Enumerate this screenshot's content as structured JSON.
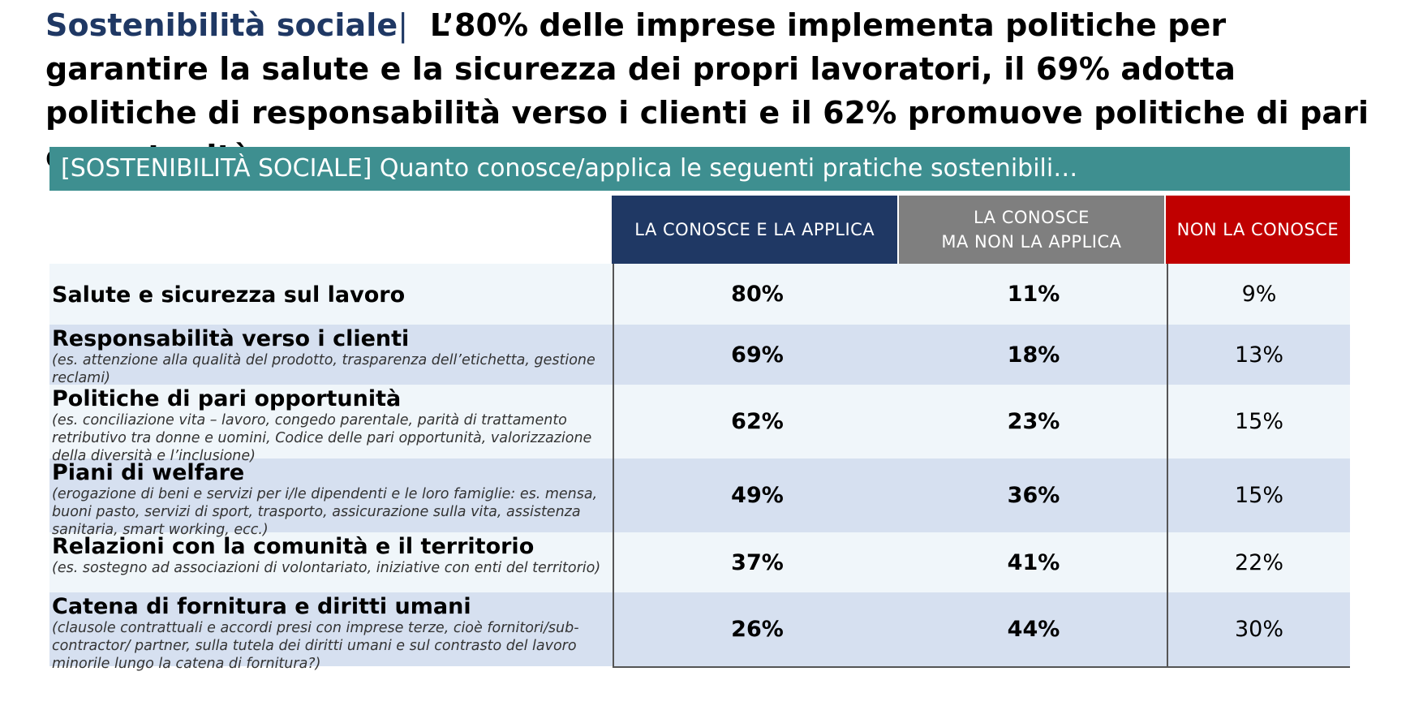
{
  "headline": {
    "brand": "Sostenibilità sociale",
    "separator": "|",
    "text": "L’80% delle imprese implementa politiche per garantire la salute e la sicurezza dei propri lavoratori, il 69% adotta politiche di responsabilità verso i clienti e il 62% promuove politiche di pari opportunità."
  },
  "banner": "[SOSTENIBILITÀ SOCIALE] Quanto conosce/applica le seguenti pratiche sostenibili…",
  "columns": {
    "applies_line1": "LA CONOSCE E LA APPLICA",
    "knows_line1": "LA CONOSCE",
    "knows_line2": "MA NON LA APPLICA",
    "unknown_line1": "NON LA CONOSCE"
  },
  "colors": {
    "banner": "#3e8f90",
    "applies_header": "#1f3864",
    "knows_header": "#7f7f7f",
    "unknown_header": "#c00000",
    "row_light": "#f0f6fa",
    "row_dark": "#d6e0f0"
  },
  "rows": [
    {
      "title": "Salute e sicurezza sul lavoro",
      "desc": "",
      "applies": "80%",
      "knows": "11%",
      "unknown": "9%"
    },
    {
      "title": "Responsabilità verso i clienti",
      "desc": "(es. attenzione alla qualità del prodotto, trasparenza dell’etichetta, gestione reclami)",
      "applies": "69%",
      "knows": "18%",
      "unknown": "13%"
    },
    {
      "title": "Politiche di pari opportunità",
      "desc": "(es. conciliazione vita – lavoro, congedo parentale, parità di trattamento retributivo tra donne e uomini, Codice delle pari opportunità, valorizzazione della diversità e l’inclusione)",
      "applies": "62%",
      "knows": "23%",
      "unknown": "15%"
    },
    {
      "title": "Piani di welfare",
      "desc": "(erogazione di beni e servizi per i/le dipendenti e le loro famiglie: es. mensa, buoni pasto, servizi di sport, trasporto, assicurazione sulla vita, assistenza sanitaria, smart working, ecc.)",
      "applies": "49%",
      "knows": "36%",
      "unknown": "15%"
    },
    {
      "title": "Relazioni con la comunità e il territorio",
      "desc": "(es. sostegno ad associazioni di volontariato, iniziative con enti del territorio)",
      "applies": "37%",
      "knows": "41%",
      "unknown": "22%"
    },
    {
      "title": "Catena di fornitura e diritti umani",
      "desc": "(clausole contrattuali e accordi presi con imprese terze, cioè fornitori/sub-contractor/ partner, sulla tutela dei diritti umani e sul contrasto del lavoro minorile lungo la catena di fornitura?)",
      "applies": "26%",
      "knows": "44%",
      "unknown": "30%"
    }
  ]
}
